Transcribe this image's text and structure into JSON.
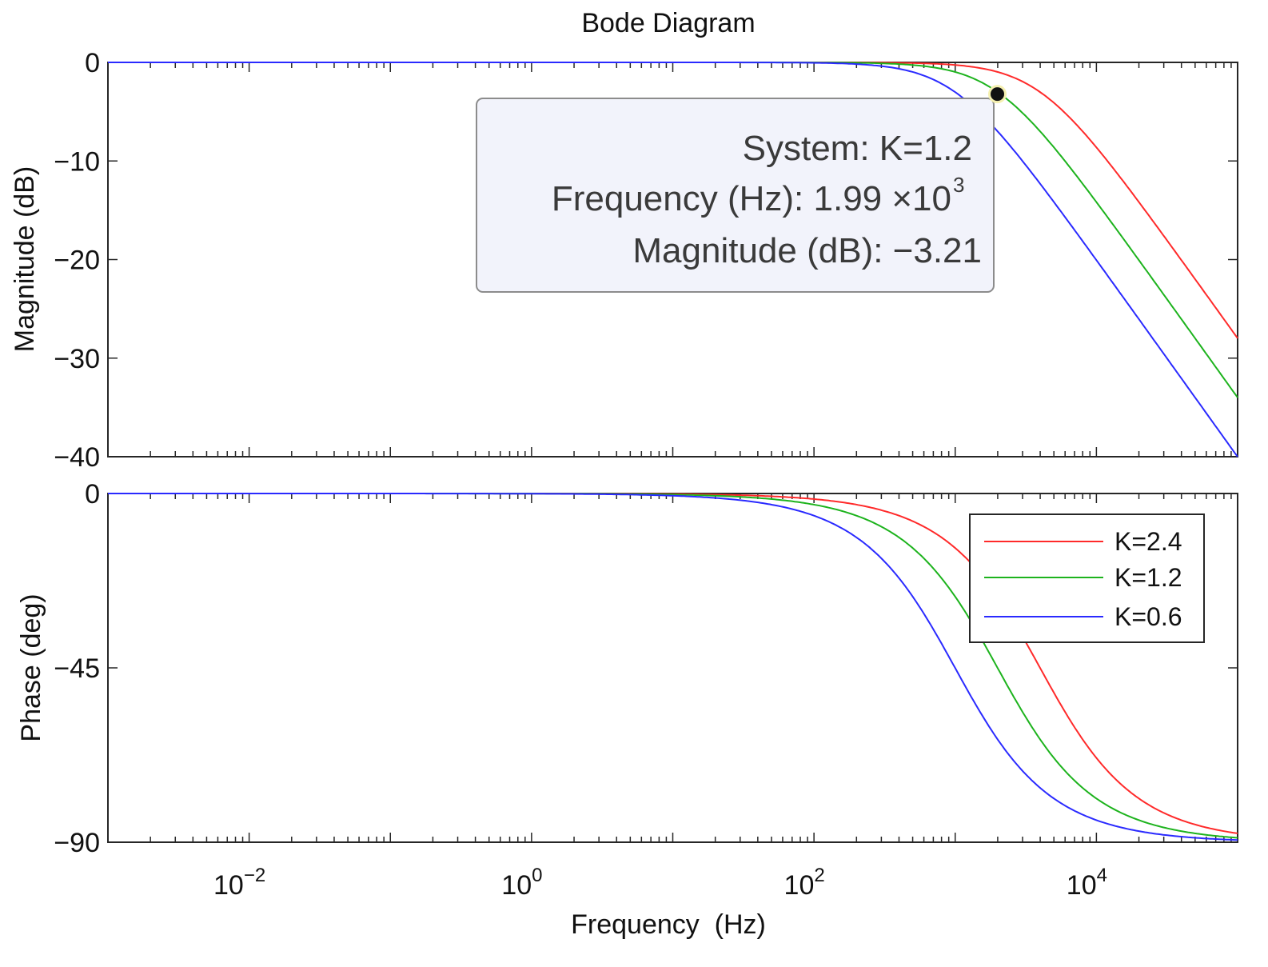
{
  "chart_data": {
    "type": "line",
    "title": "Bode Diagram",
    "xlabel": "Frequency  (Hz)",
    "xscale": "log",
    "xlim_log10": [
      -3,
      5
    ],
    "x_ticks": [
      {
        "base": "10",
        "exp": "−2",
        "log10": -2
      },
      {
        "base": "10",
        "exp": "0",
        "log10": 0
      },
      {
        "base": "10",
        "exp": "2",
        "log10": 2
      },
      {
        "base": "10",
        "exp": "4",
        "log10": 4
      }
    ],
    "magnitude": {
      "ylabel": "Magnitude (dB)",
      "ylim": [
        -40,
        0
      ],
      "yticks": [
        0,
        -10,
        -20,
        -30,
        -40
      ],
      "ytick_labels": [
        "0",
        "−10",
        "−20",
        "−30",
        "−40"
      ]
    },
    "phase": {
      "ylabel": "Phase (deg)",
      "ylim": [
        -90,
        0
      ],
      "yticks": [
        0,
        -45,
        -90
      ],
      "ytick_labels": [
        "0",
        "−45",
        "−90"
      ]
    },
    "series": [
      {
        "name": "K=2.4",
        "color": "#ff2a2a",
        "corner_hz": 3990,
        "magnitude_db_at_1e5": -28.0
      },
      {
        "name": "K=1.2",
        "color": "#1db31d",
        "corner_hz": 1995,
        "magnitude_db_at_1e5": -34.0
      },
      {
        "name": "K=0.6",
        "color": "#2a2aff",
        "corner_hz": 998,
        "magnitude_db_at_1e5": -40.0
      }
    ],
    "legend": {
      "position": "upper-right",
      "panel": "phase"
    },
    "datatip": {
      "series": "K=1.2",
      "frequency_hz": 1990,
      "magnitude_db": -3.21,
      "line1": "System: K=1.2",
      "line2_prefix": "Frequency (Hz): 1.99 ×10",
      "line2_exp": "3",
      "line3": "Magnitude (dB): −3.21"
    }
  }
}
